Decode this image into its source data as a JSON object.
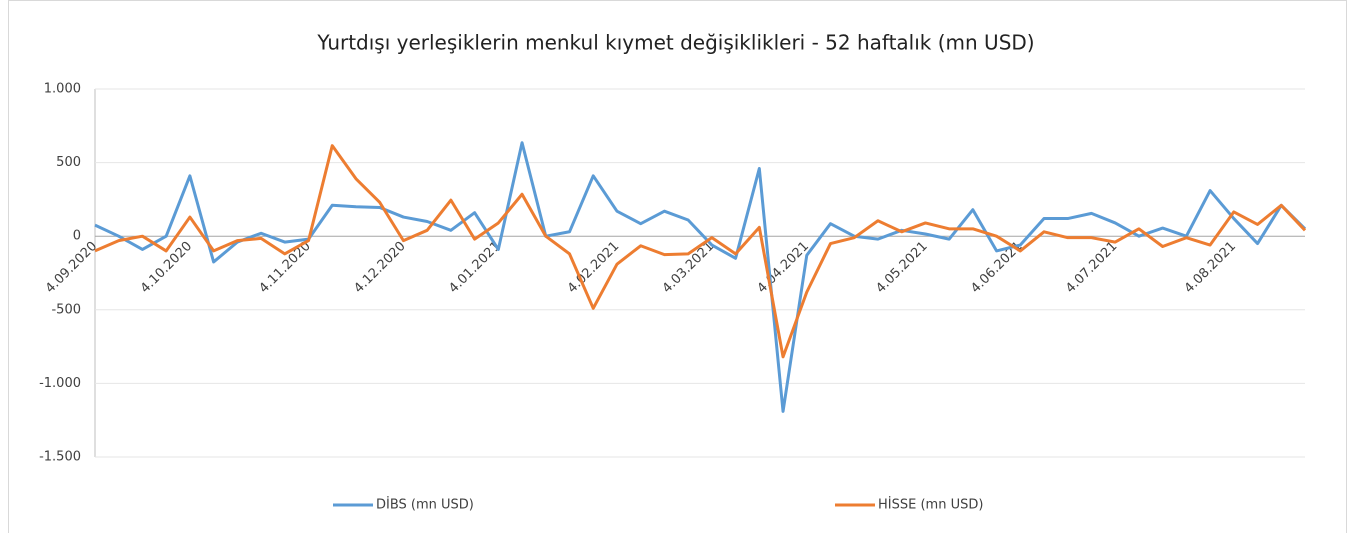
{
  "chart_data": {
    "type": "line",
    "title": "Yurtdışı yerleşiklerin menkul kıymet değişiklikleri - 52 haftalık (mn USD)",
    "categories": [
      "4.09.2020",
      null,
      null,
      null,
      "4.10.2020",
      null,
      null,
      null,
      null,
      "4.11.2020",
      null,
      null,
      null,
      "4.12.2020",
      null,
      null,
      null,
      "4.01.2021",
      null,
      null,
      null,
      null,
      "4.02.2021",
      null,
      null,
      null,
      "4.03.2021",
      null,
      null,
      null,
      "4.04.2021",
      null,
      null,
      null,
      null,
      "4.05.2021",
      null,
      null,
      null,
      "4.06.2021",
      null,
      null,
      null,
      "4.07.2021",
      null,
      null,
      null,
      null,
      "4.08.2021",
      null,
      null,
      null
    ],
    "series": [
      {
        "name": "DİBS (mn USD)",
        "color": "#5b9bd5",
        "values": [
          75,
          0,
          -90,
          0,
          410,
          -175,
          -40,
          20,
          -40,
          -20,
          210,
          200,
          195,
          130,
          100,
          40,
          160,
          -90,
          635,
          0,
          30,
          410,
          170,
          85,
          170,
          110,
          -60,
          -150,
          460,
          -1190,
          -130,
          85,
          0,
          -20,
          40,
          15,
          -20,
          180,
          -100,
          -60,
          120,
          120,
          155,
          90,
          0,
          55,
          0,
          310,
          120,
          -50,
          210,
          50
        ]
      },
      {
        "name": "HİSSE (mn USD)",
        "color": "#ed7d31",
        "values": [
          -100,
          -30,
          0,
          -100,
          130,
          -100,
          -30,
          -15,
          -120,
          -30,
          615,
          390,
          230,
          -30,
          40,
          245,
          -20,
          90,
          285,
          0,
          -120,
          -490,
          -190,
          -65,
          -125,
          -120,
          -10,
          -120,
          60,
          -820,
          -380,
          -50,
          -10,
          105,
          30,
          90,
          50,
          50,
          0,
          -100,
          30,
          -10,
          -10,
          -40,
          50,
          -70,
          -10,
          -60,
          165,
          80,
          210,
          40
        ]
      }
    ],
    "ylim": [
      -1500,
      1000
    ],
    "yticks": [
      {
        "value": -1500,
        "label": "-1.500"
      },
      {
        "value": -1000,
        "label": "-1.000"
      },
      -500,
      0,
      500,
      {
        "value": 1000,
        "label": "1.000"
      }
    ],
    "grid": true,
    "legend": "bottom"
  }
}
